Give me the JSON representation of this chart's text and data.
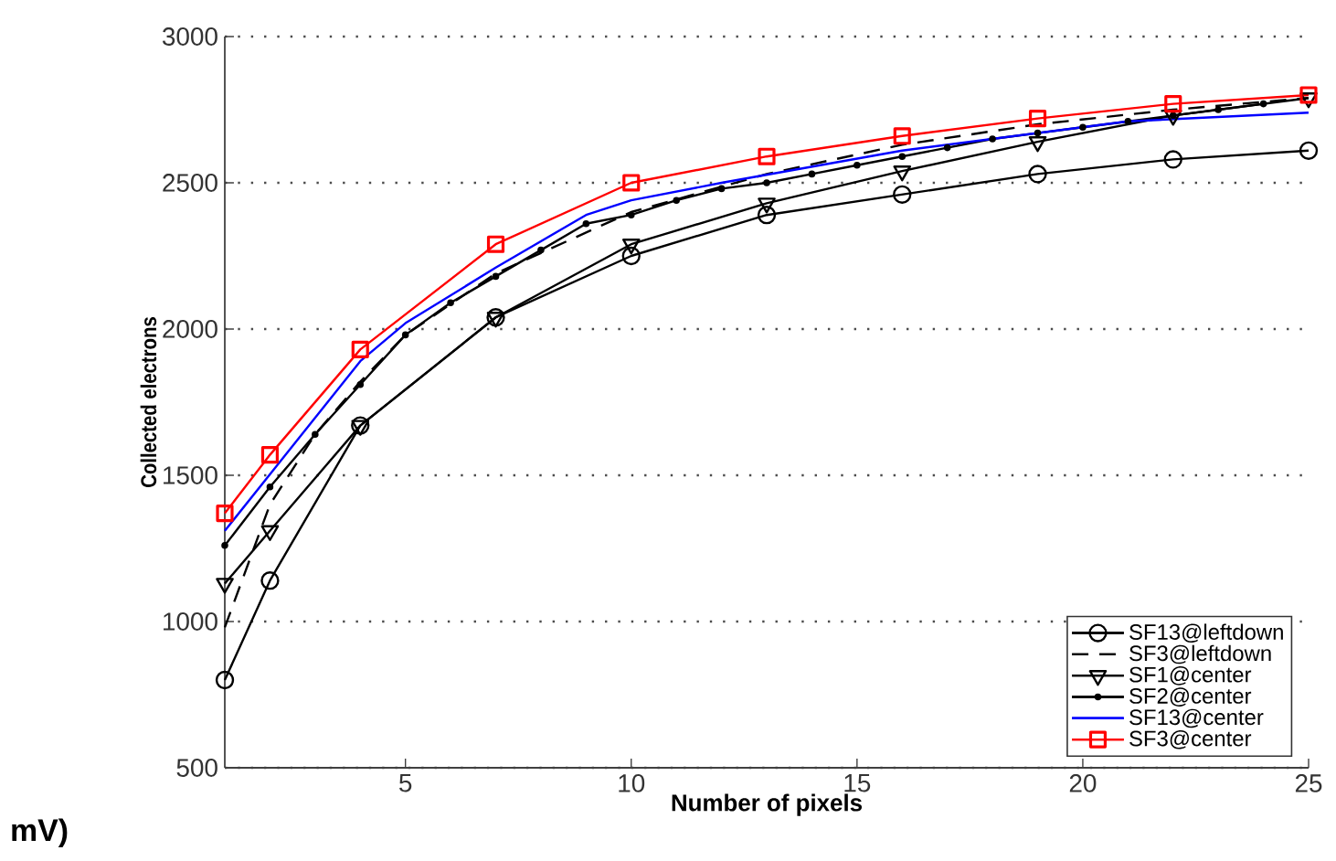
{
  "chart_data": {
    "type": "line",
    "xlabel": "Number of pixels",
    "ylabel": "Collected electrons",
    "xlim": [
      1,
      25
    ],
    "ylim": [
      500,
      3000
    ],
    "xticks": [
      5,
      10,
      15,
      20,
      25
    ],
    "yticks": [
      500,
      1000,
      1500,
      2000,
      2500,
      3000
    ],
    "grid": "y",
    "legend": "bottom right",
    "annotations": [
      "mV)"
    ],
    "series": [
      {
        "name": "SF13@leftdown",
        "color": "#000000",
        "marker": "circle",
        "line_style": "solid",
        "x": [
          1,
          2,
          4,
          7,
          10,
          13,
          16,
          19,
          22,
          25
        ],
        "values": [
          800,
          1140,
          1670,
          2040,
          2250,
          2390,
          2460,
          2530,
          2580,
          2610
        ]
      },
      {
        "name": "SF3@leftdown",
        "color": "#000000",
        "marker": "none",
        "line_style": "dashed",
        "x": [
          1,
          2,
          3,
          4,
          5,
          7,
          10,
          13,
          16,
          19,
          22,
          25
        ],
        "values": [
          980,
          1400,
          1640,
          1820,
          1980,
          2190,
          2400,
          2530,
          2630,
          2700,
          2750,
          2790
        ]
      },
      {
        "name": "SF1@center",
        "color": "#000000",
        "marker": "triangle",
        "line_style": "solid",
        "x": [
          1,
          2,
          4,
          7,
          10,
          13,
          16,
          19,
          22,
          25
        ],
        "values": [
          1130,
          1310,
          1670,
          2040,
          2290,
          2430,
          2540,
          2640,
          2730,
          2790
        ]
      },
      {
        "name": "SF2@center",
        "color": "#000000",
        "marker": "point",
        "line_style": "solid",
        "x": [
          1,
          2,
          3,
          4,
          5,
          6,
          7,
          8,
          9,
          10,
          11,
          12,
          13,
          14,
          15,
          16,
          17,
          18,
          19,
          20,
          21,
          22,
          23,
          24
        ],
        "values": [
          1260,
          1460,
          1640,
          1810,
          1980,
          2090,
          2180,
          2270,
          2360,
          2390,
          2440,
          2480,
          2500,
          2530,
          2560,
          2590,
          2620,
          2650,
          2670,
          2690,
          2710,
          2730,
          2750,
          2770
        ]
      },
      {
        "name": "SF13@center",
        "color": "#0000ff",
        "marker": "none",
        "line_style": "solid",
        "x": [
          1,
          4,
          5,
          7,
          9,
          10,
          12,
          16,
          21,
          25
        ],
        "values": [
          1310,
          1890,
          2020,
          2210,
          2390,
          2440,
          2500,
          2610,
          2710,
          2740
        ]
      },
      {
        "name": "SF3@center",
        "color": "#ff0000",
        "marker": "square",
        "line_style": "solid",
        "x": [
          1,
          2,
          4,
          7,
          10,
          13,
          16,
          19,
          22,
          25
        ],
        "values": [
          1370,
          1570,
          1930,
          2290,
          2500,
          2590,
          2660,
          2720,
          2770,
          2800
        ]
      }
    ]
  }
}
